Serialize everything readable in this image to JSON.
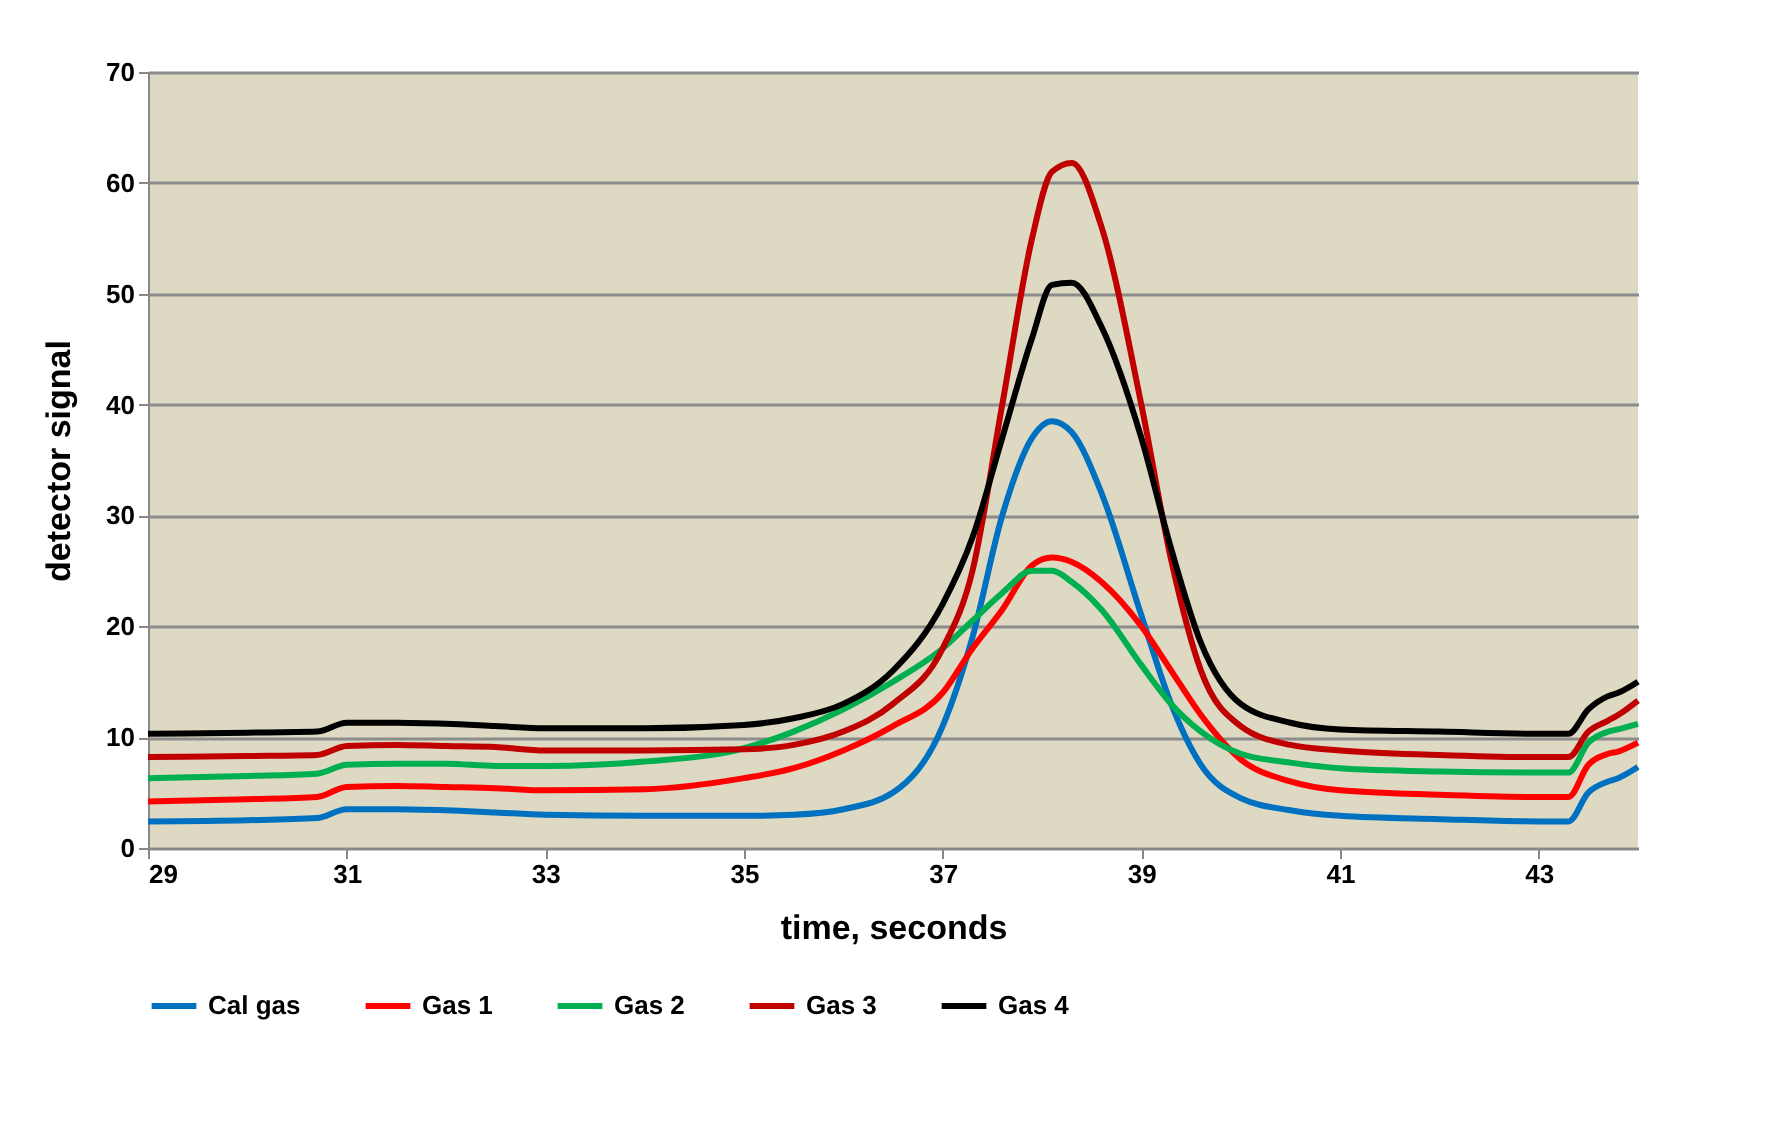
{
  "chart_data": {
    "type": "line",
    "xlabel": "time, seconds",
    "ylabel": "detector signal",
    "x": [
      29,
      30,
      30.7,
      31,
      31.5,
      32,
      32.5,
      33,
      34,
      35,
      35.5,
      36,
      36.5,
      37,
      37.3,
      37.6,
      37.9,
      38.1,
      38.3,
      38.6,
      39,
      39.3,
      39.6,
      40,
      40.5,
      41,
      42,
      43,
      43.3,
      43.5,
      43.7,
      43.8,
      44
    ],
    "series": [
      {
        "name": "Cal gas",
        "color": "#0070c0",
        "values": [
          2.4,
          2.5,
          2.7,
          3.5,
          3.5,
          3.4,
          3.2,
          3.0,
          2.9,
          2.9,
          3.0,
          3.5,
          5,
          11,
          19,
          30,
          37,
          38.5,
          37.5,
          32,
          21,
          13,
          7.5,
          4.5,
          3.4,
          2.9,
          2.6,
          2.4,
          2.4,
          5,
          6,
          6.3,
          7.3
        ]
      },
      {
        "name": "Gas 1",
        "color": "#ff0000",
        "values": [
          4.2,
          4.4,
          4.6,
          5.5,
          5.6,
          5.5,
          5.4,
          5.2,
          5.3,
          6.3,
          7.2,
          8.8,
          11,
          14,
          18,
          21.5,
          25.5,
          26.2,
          25.8,
          24,
          20,
          16,
          12,
          8,
          6,
          5.2,
          4.8,
          4.6,
          4.6,
          7.5,
          8.5,
          8.7,
          9.5
        ]
      },
      {
        "name": "Gas 2",
        "color": "#00b050",
        "values": [
          6.3,
          6.5,
          6.7,
          7.5,
          7.6,
          7.6,
          7.4,
          7.4,
          7.8,
          9,
          10.5,
          12.5,
          15,
          18,
          20.5,
          23,
          25,
          25,
          24,
          21.5,
          16.5,
          13,
          10.5,
          8.5,
          7.7,
          7.2,
          6.9,
          6.8,
          6.8,
          9.5,
          10.5,
          10.7,
          11.2
        ]
      },
      {
        "name": "Gas 3",
        "color": "#c00000",
        "values": [
          8.2,
          8.3,
          8.4,
          9.2,
          9.3,
          9.2,
          9.1,
          8.8,
          8.8,
          8.9,
          9.3,
          10.5,
          13,
          18,
          25,
          40,
          55,
          61,
          61.8,
          56,
          40,
          26,
          16,
          11,
          9.3,
          8.8,
          8.4,
          8.2,
          8.2,
          10.5,
          11.5,
          12,
          13.3
        ]
      },
      {
        "name": "Gas 4",
        "color": "#000000",
        "values": [
          10.3,
          10.4,
          10.5,
          11.3,
          11.3,
          11.2,
          11.0,
          10.8,
          10.8,
          11.1,
          11.7,
          13,
          16,
          22,
          28,
          37,
          46,
          50.8,
          51,
          47,
          37,
          27,
          18.5,
          13,
          11.3,
          10.7,
          10.5,
          10.3,
          10.3,
          12.5,
          13.7,
          14,
          15
        ]
      }
    ],
    "xlim": [
      29,
      44
    ],
    "xticks": [
      29,
      31,
      33,
      35,
      37,
      39,
      41,
      43
    ],
    "ylim": [
      0,
      70
    ],
    "yticks": [
      0,
      10,
      20,
      30,
      40,
      50,
      60,
      70
    ],
    "grid": "y",
    "legend": "bottom",
    "line_style": "solid",
    "marker": "none"
  }
}
